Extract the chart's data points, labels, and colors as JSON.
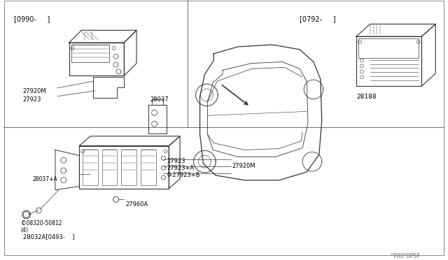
{
  "bg_color": "#ffffff",
  "line_color": "#333333",
  "fig_width": 6.4,
  "fig_height": 3.72,
  "dpi": 100,
  "watermark": "^P80*0P5P",
  "bracket_top_left": "[0990-     ]",
  "bracket_top_right": "[0792-     ]",
  "label_27920M_top": "27920M",
  "label_27923_top": "27923",
  "label_28037": "28037",
  "label_28188": "28188",
  "label_27923_bot": "27923",
  "label_27923A": "27923+A",
  "label_27923B": "0-27923+B",
  "label_27920M_bot": "27920M",
  "label_28037A": "28037+A",
  "label_27960A": "27960A",
  "label_screw": "©08320-50812",
  "label_screw2": "(4)",
  "label_28032A": "28032A[0493-    ]"
}
